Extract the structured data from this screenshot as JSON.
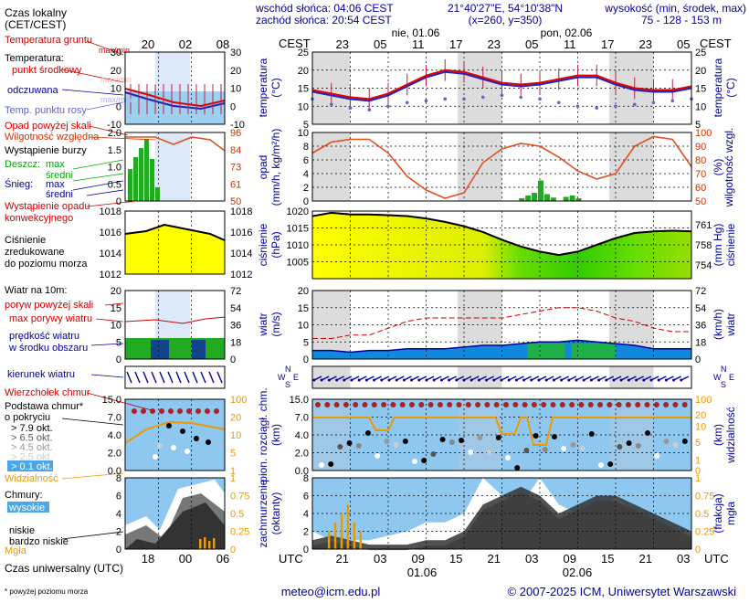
{
  "header": {
    "sunrise": "wschód słońca: 04:06 CEST",
    "sunset": "zachód słońca: 20:54 CEST",
    "coords": "21°40'27\"E, 54°10'38\"N",
    "grid": "(x=260,  y=350)",
    "height_label": "wysokość (min, środek, max)",
    "height_values": "75 - 128 - 153 m"
  },
  "time_axis": {
    "top_tz": "CEST",
    "top_hours": [
      "23",
      "05",
      "11",
      "17",
      "23",
      "05",
      "11",
      "17",
      "23",
      "05"
    ],
    "day1": "nie, 01.06",
    "day2": "pon, 02.06",
    "bottom_tz": "UTC",
    "bottom_hours": [
      "21",
      "03",
      "09",
      "15",
      "21",
      "03",
      "09",
      "15",
      "21",
      "03"
    ],
    "bottom_day1": "01.06",
    "bottom_day2": "02.06"
  },
  "legend": {
    "local_time": "Czas lokalny",
    "local_time2": "(CET/CEST)",
    "local_hours": [
      "20",
      "02",
      "08"
    ],
    "ground_temp": "Temperatura gruntu",
    "ground_temp2": "max/min",
    "temp": "Temperatura:",
    "temp_mid": "punkt środkowy",
    "temp_maxmin": "max/min",
    "feels": "odczuwana",
    "feels_maxmin": "max/min",
    "dewpoint": "Temp. punktu rosy",
    "precip_above": "Opad powyżej skali",
    "humidity": "Wilgotność względna",
    "storm": "Wystąpienie burzy",
    "rain": "Deszcz:",
    "rain_max": "max",
    "rain_mean": "średni",
    "snow": "Śnieg:",
    "snow_max": "max",
    "snow_mean": "średni",
    "conv": "Wystąpienie opadu",
    "conv2": "konwekcyjnego",
    "pressure1": "Ciśnienie",
    "pressure2": "zredukowane",
    "pressure3": "do poziomu morza",
    "wind_at": "Wiatr na 10m:",
    "gust_above": "poryw powyżej skali",
    "gust_max": "max porywy wiatru",
    "wind_speed": "prędkość wiatru",
    "wind_speed2": "w środku obszaru",
    "wind_dir": "kierunek wiatru",
    "cloud_top": "Wierzchołek chmur",
    "cloud_base": "Podstawa chmur*",
    "cloud_base2": "o pokryciu",
    "okt": [
      "> 7.9 okt.",
      "> 6.5 okt.",
      "> 4.5 okt.",
      "> 2.5 okt.",
      "> 0.1 okt."
    ],
    "visibility": "Widzialność",
    "clouds": "Chmury:",
    "high": "wysokie",
    "mid": "średnie",
    "low": "niskie",
    "very_low": "bardzo niskie",
    "fog": "Mgła",
    "utc": "Czas uniwersalny (UTC)",
    "utc_hours": [
      "18",
      "00",
      "06"
    ],
    "footnote": "* powyżej poziomu morza"
  },
  "panel_labels": {
    "temp_left": "temperatura",
    "temp_left2": "(°C)",
    "temp_right": "temperatura",
    "temp_right2": "(°C)",
    "precip_left": "opad",
    "precip_left2": "(mm/h, kg/m²/h)",
    "precip_right": "wilgotność wzgl.",
    "precip_right2": "(%)",
    "press_left": "ciśnienie",
    "press_left2": "(hPa)",
    "press_right": "ciśnienie",
    "press_right2": "(mm Hg)",
    "wind_left": "wiatr",
    "wind_left2": "(m/s)",
    "wind_right": "wiatr",
    "wind_right2": "(km/h)",
    "cloud_left": "pion. rozciągł. chm.",
    "cloud_left2": "(km)",
    "cloud_right": "widzialność",
    "cloud_right2": "(km)",
    "cover_left": "zachmurzenie",
    "cover_left2": "(oktanty)",
    "cover_right": "mgła",
    "cover_right2": "(frakcja)",
    "compass": [
      "N",
      "W",
      "E",
      "S"
    ]
  },
  "axes": {
    "temp_left": [
      "25",
      "20",
      "15",
      "10",
      "5"
    ],
    "temp_right": [
      "25",
      "20",
      "15",
      "10",
      "5"
    ],
    "precip_left": [
      "10",
      "8",
      "6",
      "4",
      "2",
      "0"
    ],
    "precip_right": [
      "100",
      "90",
      "80",
      "70",
      "60",
      "50"
    ],
    "press_left": [
      "1020",
      "1015",
      "1010",
      "1005"
    ],
    "press_right": [
      "761",
      "758",
      "754"
    ],
    "wind_left": [
      "20",
      "15",
      "10",
      "5",
      "0"
    ],
    "wind_right": [
      "72",
      "54",
      "36",
      "18",
      "0"
    ],
    "cloud_left": [
      "15.0",
      "7.0",
      "4.0",
      "2.0",
      "0.0"
    ],
    "cloud_right": [
      "100",
      "20",
      "10",
      "5",
      "1",
      "0"
    ],
    "cover_left": [
      "8",
      "6",
      "4",
      "2",
      "0"
    ],
    "cover_right": [
      "1",
      "0.75",
      "0.5",
      "0.25",
      "0"
    ],
    "leg_temp_left": [
      "30",
      "20",
      "10",
      "0",
      "-10"
    ],
    "leg_temp_right": [
      "30",
      "20",
      "10",
      "0",
      "-10"
    ],
    "leg_precip_left": [
      "2.0",
      "1.5",
      "1.0",
      "0.5",
      "0"
    ],
    "leg_precip_right": [
      "96",
      "84",
      "73",
      "61",
      "50"
    ],
    "leg_press_left": [
      "1018",
      "1016",
      "1014",
      "1012"
    ],
    "leg_press_right": [
      "1018",
      "1016",
      "1014",
      "1012"
    ],
    "leg_wind_left": [
      "20",
      "15",
      "10",
      "5",
      "0"
    ],
    "leg_wind_right": [
      "72",
      "54",
      "36",
      "18",
      "0"
    ],
    "leg_cloud_left": [
      "15.0",
      "7.0",
      "4.0",
      "2.0",
      "0.0"
    ],
    "leg_cloud_right": [
      "100",
      "20",
      "10",
      "5",
      "1"
    ],
    "leg_cover_left": [
      "8",
      "6",
      "4",
      "2",
      "0"
    ],
    "leg_cover_right": [
      "1",
      "0.75",
      "0.5",
      "0.25",
      "0"
    ]
  },
  "footer": {
    "email": "meteo@icm.edu.pl",
    "copyright": "© 2007-2025 ICM, Uniwersytet Warszawski"
  },
  "colors": {
    "temp": "#dd0000",
    "feels": "#2020c0",
    "dew": "#6060e0",
    "axis_red": "#cc3300",
    "axis_blue": "#000099",
    "sky": "#8ec8f0",
    "pressure_high": "#ffff00",
    "pressure_low": "#33cc00"
  },
  "chart_data": [
    {
      "type": "line",
      "title": "temperatura",
      "x_hours_utc": [
        18,
        21,
        24,
        27,
        30,
        33,
        36,
        39,
        42,
        45,
        48,
        51,
        54,
        57,
        60,
        63,
        66,
        69,
        72,
        75,
        78
      ],
      "series": [
        {
          "name": "temperatura",
          "values": [
            14.5,
            13.5,
            12.5,
            12,
            13.5,
            16,
            18.5,
            20,
            19.5,
            18,
            16.5,
            16,
            16.5,
            17.5,
            18.5,
            18.5,
            16.5,
            15,
            14.5,
            14.5,
            15.5
          ]
        },
        {
          "name": "odczuwana",
          "values": [
            14,
            13,
            12,
            11.5,
            13,
            15.5,
            18,
            19.5,
            19,
            17.5,
            16,
            15.5,
            16,
            17,
            18,
            18,
            16,
            14.5,
            14,
            14,
            15
          ]
        },
        {
          "name": "punkt rosy",
          "values": [
            12,
            10.5,
            9.5,
            9,
            10,
            11,
            11.5,
            12,
            12,
            12.5,
            13,
            12.5,
            12,
            11,
            10,
            9.5,
            10,
            10.5,
            11,
            11.5,
            12
          ]
        }
      ],
      "ylim": [
        5,
        25
      ]
    },
    {
      "type": "line",
      "title": "wilgotność wzgl.",
      "x_hours_utc": [
        18,
        21,
        24,
        27,
        30,
        33,
        36,
        39,
        42,
        45,
        48,
        51,
        54,
        57,
        60,
        63,
        66,
        69,
        72,
        75,
        78
      ],
      "series": [
        {
          "name": "wilgotność",
          "values": [
            85,
            93,
            95,
            95,
            85,
            68,
            58,
            52,
            56,
            78,
            88,
            92,
            90,
            82,
            72,
            66,
            70,
            90,
            97,
            95,
            75
          ]
        }
      ],
      "ylim": [
        50,
        100
      ]
    },
    {
      "type": "area",
      "title": "ciśnienie",
      "x_hours_utc": [
        18,
        21,
        24,
        27,
        30,
        33,
        36,
        39,
        42,
        45,
        48,
        51,
        54,
        57,
        60,
        63,
        66,
        69,
        72,
        75,
        78
      ],
      "series": [
        {
          "name": "ciśnienie",
          "values": [
            1018.5,
            1019.5,
            1019,
            1019,
            1018.8,
            1018.5,
            1017.8,
            1016.8,
            1015.5,
            1013.8,
            1011.5,
            1009.5,
            1008,
            1007,
            1008,
            1010,
            1012,
            1013.5,
            1014,
            1014.2,
            1014
          ]
        }
      ],
      "ylim": [
        1000,
        1020
      ]
    },
    {
      "type": "line",
      "title": "wiatr",
      "x_hours_utc": [
        18,
        21,
        24,
        27,
        30,
        33,
        36,
        39,
        42,
        45,
        48,
        51,
        54,
        57,
        60,
        63,
        66,
        69,
        72,
        75,
        78
      ],
      "series": [
        {
          "name": "prędkość",
          "values": [
            2.5,
            2.5,
            2,
            2.5,
            2.5,
            3,
            3,
            3,
            3.5,
            4,
            4,
            4.5,
            5,
            5,
            5.5,
            5,
            4.5,
            4,
            3,
            3,
            3
          ]
        },
        {
          "name": "porywy",
          "values": [
            6,
            6,
            7,
            7,
            9,
            11,
            12,
            12,
            12,
            12,
            12,
            13,
            14,
            15,
            15,
            14,
            12,
            11,
            9,
            8,
            8
          ]
        }
      ],
      "ylim": [
        0,
        20
      ]
    },
    {
      "type": "area",
      "title": "zachmurzenie",
      "x_hours_utc": [
        18,
        21,
        24,
        27,
        30,
        33,
        36,
        39,
        42,
        45,
        48,
        51,
        54,
        57,
        60,
        63,
        66,
        69,
        72,
        75,
        78
      ],
      "series": [
        {
          "name": "niskie",
          "values": [
            1,
            1.5,
            1,
            0.5,
            0.5,
            0.5,
            1,
            1,
            2,
            5,
            6,
            7,
            6,
            4,
            5,
            6,
            6,
            5,
            4,
            3,
            2
          ]
        }
      ],
      "ylim": [
        0,
        8
      ]
    }
  ]
}
